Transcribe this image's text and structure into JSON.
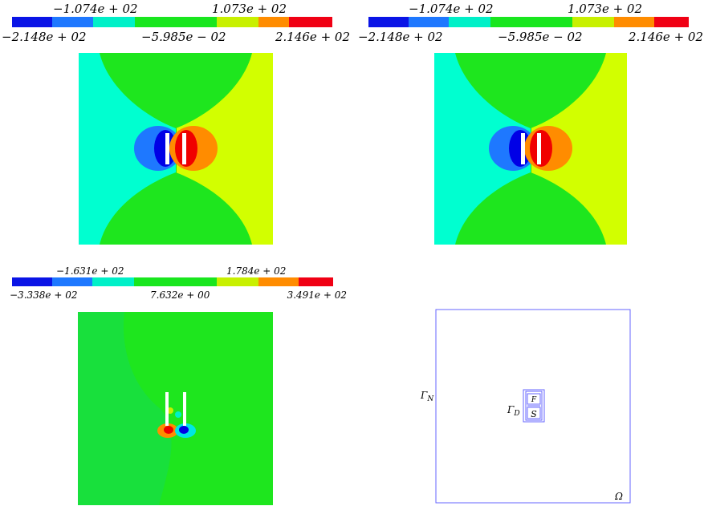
{
  "colors": {
    "cb_blue": "#0a14e6",
    "cb_mid_blue": "#1e78ff",
    "cb_cyan": "#00f0c8",
    "cb_green": "#19e61e",
    "cb_yellow_green": "#c8f000",
    "cb_orange": "#ff8c00",
    "cb_red": "#f00014",
    "field_cyan": "#00ffd0",
    "field_green": "#1ee61e",
    "field_yellow": "#d2ff00",
    "field_blue_light": "#1e78ff",
    "field_blue_dark": "#0000e6",
    "field_orange": "#ff8c00",
    "field_red": "#f00000",
    "domain_line": "#6666ff"
  },
  "panel1": {
    "colorbar": {
      "top_labels": [
        "−1.074e + 02",
        "1.073e + 02"
      ],
      "bottom_labels": [
        "−2.148e + 02",
        "−5.985e − 02",
        "2.146e + 02"
      ]
    }
  },
  "panel2": {
    "colorbar": {
      "top_labels": [
        "−1.074e + 02",
        "1.073e + 02"
      ],
      "bottom_labels": [
        "−2.148e + 02",
        "−5.985e − 02",
        "2.146e + 02"
      ]
    }
  },
  "panel3": {
    "colorbar": {
      "top_labels": [
        "−1.631e + 02",
        "1.784e + 02"
      ],
      "bottom_labels": [
        "−3.338e + 02",
        "7.632e + 00",
        "3.491e + 02"
      ]
    }
  },
  "panel4": {
    "labels": {
      "gamma_n": "Γ",
      "gamma_n_sub": "N",
      "gamma_d": "Γ",
      "gamma_d_sub": "D",
      "omega": "Ω",
      "s": "S",
      "f": "F"
    }
  }
}
